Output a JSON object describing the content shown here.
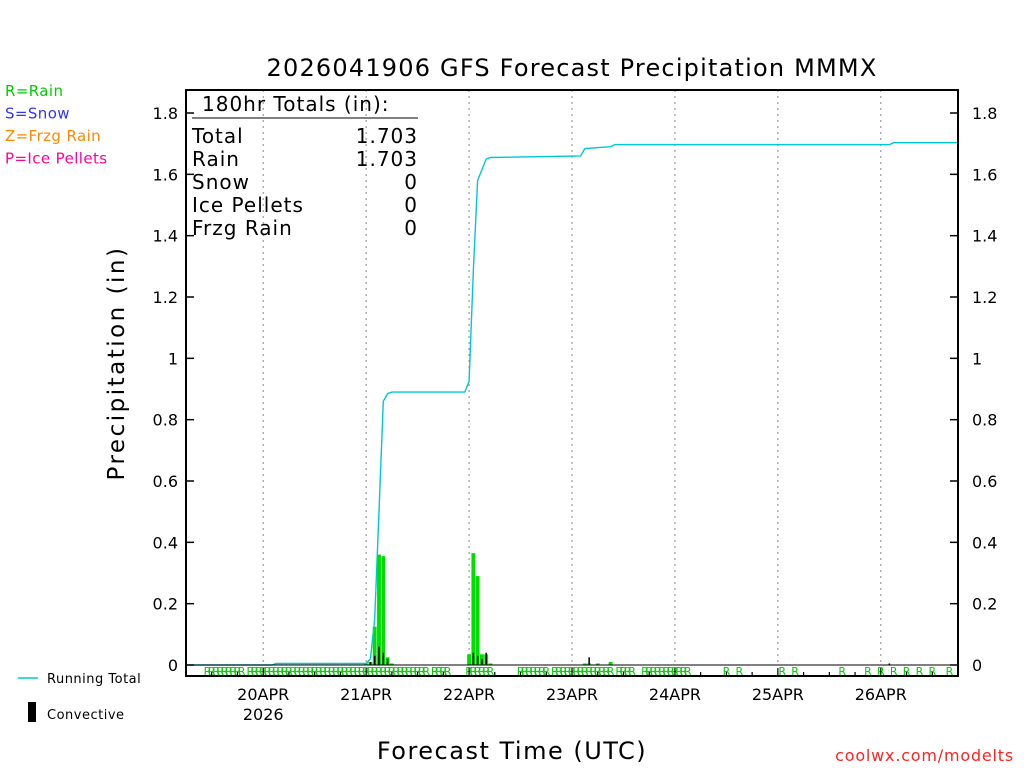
{
  "chart_data": {
    "type": "bar",
    "title": "2026041906 GFS Forecast Precipitation MMMX",
    "xlabel": "Forecast Time (UTC)",
    "ylabel": "Precipitation (in)",
    "ylim": [
      0,
      1.87
    ],
    "y_ticks": [
      0,
      0.2,
      0.4,
      0.6,
      0.8,
      1,
      1.2,
      1.4,
      1.6,
      1.8
    ],
    "y_tick_labels": [
      "0",
      "0.2",
      "0.4",
      "0.6",
      "0.8",
      "1",
      "1.2",
      "1.4",
      "1.6",
      "1.8"
    ],
    "x_range_hours": [
      0,
      180
    ],
    "x_ticks": [
      {
        "hour": 18,
        "label": "20APR",
        "sublabel": "2026"
      },
      {
        "hour": 42,
        "label": "21APR",
        "sublabel": ""
      },
      {
        "hour": 66,
        "label": "22APR",
        "sublabel": ""
      },
      {
        "hour": 90,
        "label": "23APR",
        "sublabel": ""
      },
      {
        "hour": 114,
        "label": "24APR",
        "sublabel": ""
      },
      {
        "hour": 138,
        "label": "25APR",
        "sublabel": ""
      },
      {
        "hour": 162,
        "label": "26APR",
        "sublabel": ""
      }
    ],
    "grid": "vertical-dotted",
    "legend_types": [
      {
        "text": "R=Rain",
        "color": "#00cc00"
      },
      {
        "text": "S=Snow",
        "color": "#3333ff"
      },
      {
        "text": "Z=Frzg Rain",
        "color": "#ff8800"
      },
      {
        "text": "P=Ice Pellets",
        "color": "#ff0099"
      }
    ],
    "legend_series": {
      "running_total": "Running Total",
      "convective": "Convective"
    },
    "totals": {
      "heading": "180hr Totals (in):",
      "rows": [
        {
          "label": "Total",
          "value": "1.703"
        },
        {
          "label": "Rain",
          "value": "1.703"
        },
        {
          "label": "Snow",
          "value": "0"
        },
        {
          "label": "Ice Pellets",
          "value": "0"
        },
        {
          "label": "Frzg Rain",
          "value": "0"
        }
      ]
    },
    "series": [
      {
        "name": "Rain",
        "color": "#00dd00",
        "bar_width_hours": 0.9,
        "points": [
          {
            "hour": 42,
            "value": 0.005
          },
          {
            "hour": 43,
            "value": 0.01
          },
          {
            "hour": 44,
            "value": 0.125
          },
          {
            "hour": 45,
            "value": 0.36
          },
          {
            "hour": 46,
            "value": 0.355
          },
          {
            "hour": 47,
            "value": 0.025
          },
          {
            "hour": 48,
            "value": 0.005
          },
          {
            "hour": 66,
            "value": 0.035
          },
          {
            "hour": 67,
            "value": 0.365
          },
          {
            "hour": 68,
            "value": 0.29
          },
          {
            "hour": 69,
            "value": 0.035
          },
          {
            "hour": 70,
            "value": 0.035
          },
          {
            "hour": 71,
            "value": 0.005
          },
          {
            "hour": 93,
            "value": 0.005
          },
          {
            "hour": 94,
            "value": 0.005
          },
          {
            "hour": 96,
            "value": 0.005
          },
          {
            "hour": 99,
            "value": 0.01
          }
        ]
      },
      {
        "name": "Convective",
        "color": "#000000",
        "bar_width_hours": 0.35,
        "points": [
          {
            "hour": 43,
            "value": 0.01
          },
          {
            "hour": 44,
            "value": 0.03
          },
          {
            "hour": 45,
            "value": 0.06
          },
          {
            "hour": 46,
            "value": 0.04
          },
          {
            "hour": 47,
            "value": 0.02
          },
          {
            "hour": 67,
            "value": 0.04
          },
          {
            "hour": 68,
            "value": 0.03
          },
          {
            "hour": 69,
            "value": 0.02
          },
          {
            "hour": 70,
            "value": 0.04
          },
          {
            "hour": 94,
            "value": 0.025
          },
          {
            "hour": 164,
            "value": 0.005
          }
        ]
      },
      {
        "name": "Running Total",
        "color": "#00c8d2",
        "points": [
          {
            "hour": 0,
            "value": 0
          },
          {
            "hour": 20,
            "value": 0
          },
          {
            "hour": 21,
            "value": 0.005
          },
          {
            "hour": 42,
            "value": 0.005
          },
          {
            "hour": 43,
            "value": 0.02
          },
          {
            "hour": 44,
            "value": 0.15
          },
          {
            "hour": 45,
            "value": 0.5
          },
          {
            "hour": 46,
            "value": 0.86
          },
          {
            "hour": 47,
            "value": 0.885
          },
          {
            "hour": 48,
            "value": 0.89
          },
          {
            "hour": 65,
            "value": 0.89
          },
          {
            "hour": 66,
            "value": 0.925
          },
          {
            "hour": 67,
            "value": 1.29
          },
          {
            "hour": 68,
            "value": 1.58
          },
          {
            "hour": 69,
            "value": 1.615
          },
          {
            "hour": 70,
            "value": 1.65
          },
          {
            "hour": 71,
            "value": 1.655
          },
          {
            "hour": 92,
            "value": 1.66
          },
          {
            "hour": 93,
            "value": 1.684
          },
          {
            "hour": 99,
            "value": 1.69
          },
          {
            "hour": 100,
            "value": 1.697
          },
          {
            "hour": 164,
            "value": 1.697
          },
          {
            "hour": 165,
            "value": 1.703
          },
          {
            "hour": 180,
            "value": 1.703
          }
        ]
      }
    ],
    "precip_type_markers": {
      "symbol": "R",
      "color": "#00cc00",
      "hours": [
        5,
        6,
        7,
        8,
        9,
        10,
        11,
        12,
        13,
        15,
        16,
        17,
        18,
        19,
        20,
        21,
        22,
        23,
        24,
        25,
        26,
        27,
        28,
        29,
        30,
        31,
        32,
        33,
        34,
        35,
        36,
        37,
        38,
        39,
        40,
        41,
        42,
        43,
        44,
        45,
        46,
        47,
        48,
        49,
        50,
        51,
        52,
        53,
        54,
        55,
        56,
        58,
        59,
        60,
        61,
        66,
        67,
        68,
        69,
        70,
        71,
        78,
        79,
        80,
        81,
        82,
        83,
        84,
        86,
        87,
        88,
        89,
        90,
        91,
        92,
        93,
        94,
        95,
        96,
        97,
        98,
        99,
        101,
        102,
        103,
        104,
        107,
        108,
        109,
        110,
        111,
        112,
        113,
        114,
        115,
        116,
        117,
        126,
        129,
        139,
        142,
        153,
        159,
        162,
        165,
        168,
        171,
        174,
        178
      ]
    },
    "credit": "coolwx.com/modelts"
  }
}
